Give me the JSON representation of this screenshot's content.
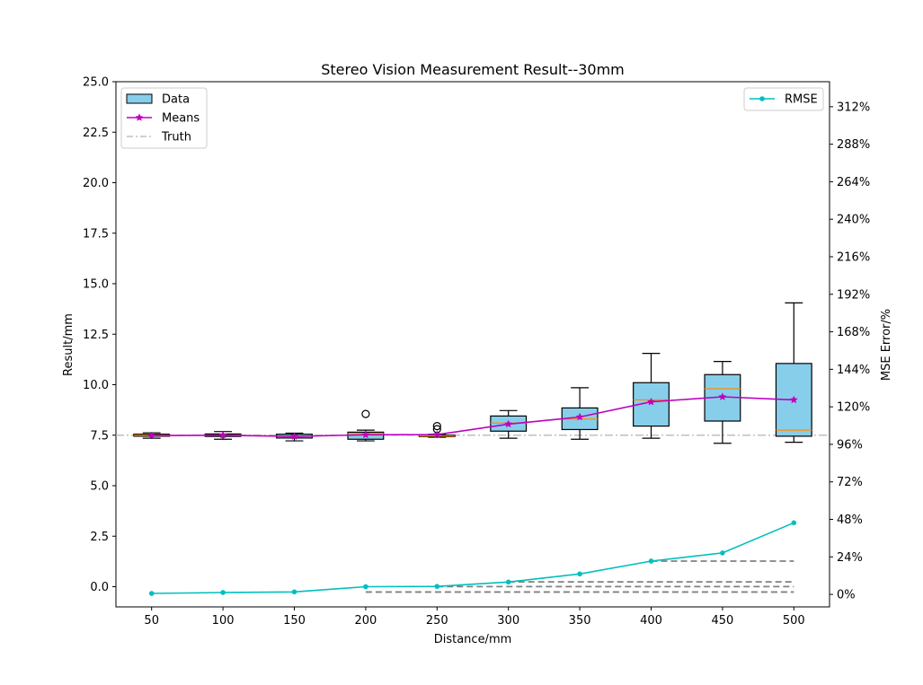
{
  "chart_data": {
    "type": "box",
    "title": "Stereo Vision Measurement Result--30mm",
    "xlabel": "Distance/mm",
    "ylabel": "Result/mm",
    "y2label": "MSE Error/%",
    "categories": [
      "50",
      "100",
      "150",
      "200",
      "250",
      "300",
      "350",
      "400",
      "450",
      "500"
    ],
    "ylim": [
      -1,
      25
    ],
    "yticks": [
      0.0,
      2.5,
      5.0,
      7.5,
      10.0,
      12.5,
      15.0,
      17.5,
      20.0,
      22.5,
      25.0
    ],
    "ytick_labels": [
      "0.0",
      "2.5",
      "5.0",
      "7.5",
      "10.0",
      "12.5",
      "15.0",
      "17.5",
      "20.0",
      "22.5",
      "25.0"
    ],
    "y2lim": [
      -8,
      328
    ],
    "y2ticks": [
      0,
      24,
      48,
      72,
      96,
      120,
      144,
      168,
      192,
      216,
      240,
      264,
      288,
      312
    ],
    "y2tick_labels": [
      "0%",
      "24%",
      "48%",
      "72%",
      "96%",
      "120%",
      "144%",
      "168%",
      "192%",
      "216%",
      "240%",
      "264%",
      "288%",
      "312%"
    ],
    "truth": 7.5,
    "boxes": [
      {
        "whislo": 7.35,
        "q1": 7.45,
        "med": 7.5,
        "q3": 7.55,
        "whishi": 7.62,
        "fliers": []
      },
      {
        "whislo": 7.3,
        "q1": 7.44,
        "med": 7.5,
        "q3": 7.56,
        "whishi": 7.68,
        "fliers": []
      },
      {
        "whislo": 7.22,
        "q1": 7.36,
        "med": 7.45,
        "q3": 7.55,
        "whishi": 7.6,
        "fliers": []
      },
      {
        "whislo": 7.22,
        "q1": 7.3,
        "med": 7.58,
        "q3": 7.65,
        "whishi": 7.75,
        "fliers": [
          8.55
        ]
      },
      {
        "whislo": 7.4,
        "q1": 7.43,
        "med": 7.46,
        "q3": 7.5,
        "whishi": 7.55,
        "fliers": [
          7.95,
          7.8
        ]
      },
      {
        "whislo": 7.35,
        "q1": 7.7,
        "med": 8.1,
        "q3": 8.45,
        "whishi": 8.72,
        "fliers": []
      },
      {
        "whislo": 7.3,
        "q1": 7.78,
        "med": 8.3,
        "q3": 8.85,
        "whishi": 9.85,
        "fliers": []
      },
      {
        "whislo": 7.35,
        "q1": 7.95,
        "med": 9.25,
        "q3": 10.1,
        "whishi": 11.55,
        "fliers": []
      },
      {
        "whislo": 7.1,
        "q1": 8.2,
        "med": 9.8,
        "q3": 10.5,
        "whishi": 11.15,
        "fliers": []
      },
      {
        "whislo": 7.15,
        "q1": 7.45,
        "med": 7.75,
        "q3": 11.05,
        "whishi": 14.05,
        "fliers": []
      }
    ],
    "series": [
      {
        "name": "Means",
        "axis": "left",
        "values": [
          7.48,
          7.5,
          7.44,
          7.52,
          7.53,
          8.05,
          8.4,
          9.15,
          9.4,
          9.25
        ]
      },
      {
        "name": "RMSE",
        "axis": "right",
        "values": [
          0.6,
          1.2,
          1.6,
          4.9,
          5.1,
          7.9,
          13.1,
          21.3,
          26.5,
          45.8
        ]
      }
    ],
    "reference_dashes": [
      {
        "from": "200",
        "to": "500",
        "value": 1.5
      },
      {
        "from": "250",
        "to": "500",
        "value": 5.0
      },
      {
        "from": "300",
        "to": "500",
        "value": 8.0
      },
      {
        "from": "400",
        "to": "500",
        "value": 21.3
      }
    ],
    "legend_left": {
      "placement": "upper-left",
      "entries": [
        "Data",
        "Means",
        "Truth"
      ]
    },
    "legend_right": {
      "placement": "upper-right",
      "entries": [
        "RMSE"
      ]
    },
    "colors": {
      "box_fill": "#87ceeb",
      "box_edge": "#000000",
      "median": "#ff8c00",
      "means": "#bf00bf",
      "truth": "#bfbfbf",
      "rmse": "#00bfbf",
      "reference": "#808080"
    }
  }
}
